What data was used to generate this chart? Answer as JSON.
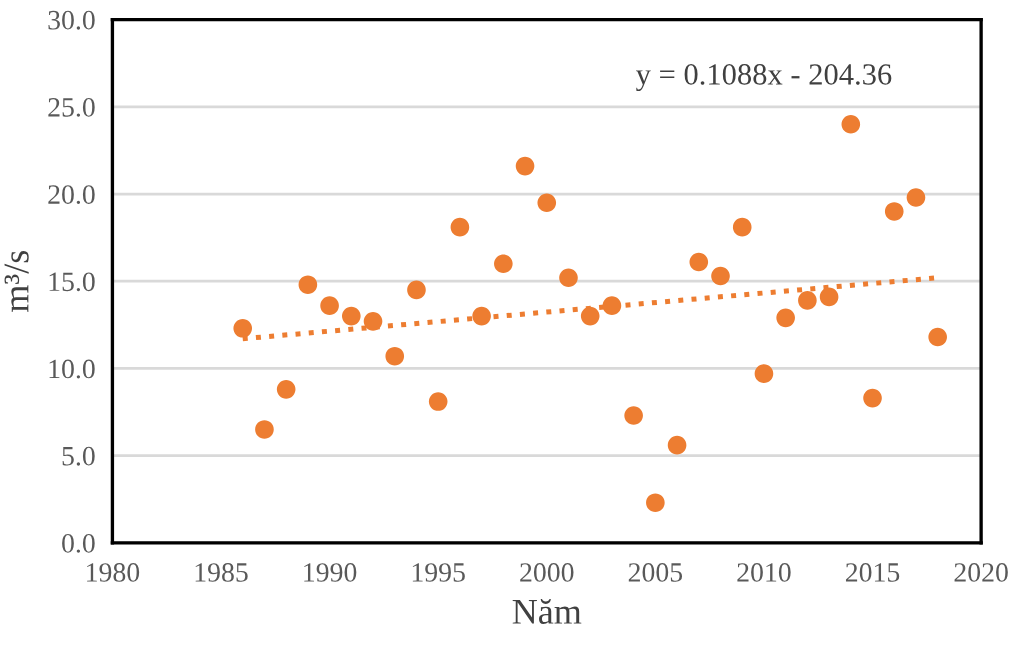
{
  "chart_data": {
    "type": "scatter",
    "xlabel": "Năm",
    "ylabel": "m³/s",
    "series": [
      {
        "color": "#ed7d31",
        "marker": "circle",
        "x": [
          1986,
          1987,
          1988,
          1989,
          1990,
          1991,
          1992,
          1993,
          1994,
          1995,
          1996,
          1997,
          1998,
          1999,
          2000,
          2001,
          2002,
          2003,
          2004,
          2005,
          2006,
          2007,
          2008,
          2009,
          2010,
          2011,
          2012,
          2013,
          2014,
          2015,
          2016,
          2017,
          2018
        ],
        "values": [
          12.3,
          6.5,
          8.8,
          14.8,
          13.6,
          13.0,
          12.7,
          10.7,
          14.5,
          8.1,
          18.1,
          13.0,
          16.0,
          21.6,
          19.5,
          15.2,
          13.0,
          13.6,
          7.3,
          2.3,
          5.6,
          16.1,
          15.3,
          18.1,
          9.7,
          12.9,
          13.9,
          14.1,
          24.0,
          8.3,
          19.0,
          19.8,
          11.8
        ]
      },
      {
        "type": "line",
        "color": "#ed7d31",
        "line_style": "dotted",
        "x": [
          1986,
          2018
        ],
        "values": [
          11.7,
          15.2
        ]
      }
    ],
    "annotations": [
      "y = 0.1088x - 204.36"
    ],
    "xlim": [
      1980,
      2020
    ],
    "xticks": [
      1980,
      1985,
      1990,
      1995,
      2000,
      2005,
      2010,
      2015,
      2020
    ],
    "ylim": [
      0,
      30
    ],
    "yticks": [
      {
        "value": 0,
        "label": "0.0"
      },
      {
        "value": 5,
        "label": "5.0"
      },
      {
        "value": 10,
        "label": "10.0"
      },
      {
        "value": 15,
        "label": "15.0"
      },
      {
        "value": 20,
        "label": "20.0"
      },
      {
        "value": 25,
        "label": "25.0"
      },
      {
        "value": 30,
        "label": "30.0"
      }
    ],
    "grid": "y",
    "legend": false
  }
}
